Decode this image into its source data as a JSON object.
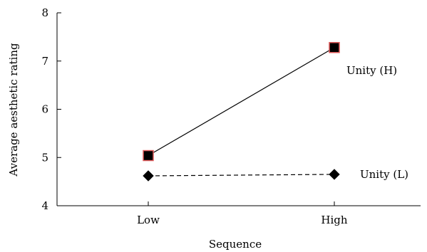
{
  "chart_data": {
    "type": "line",
    "title": "",
    "xlabel": "Sequence",
    "ylabel": "Average aesthetic rating",
    "categories": [
      "Low",
      "High"
    ],
    "ylim": [
      4,
      8
    ],
    "yticks": [
      4,
      5,
      6,
      7,
      8
    ],
    "grid": false,
    "legend": "none",
    "series": [
      {
        "name": "Unity (H)",
        "values": [
          5.04,
          7.28
        ],
        "line_style": "solid",
        "marker": "square",
        "marker_fill": "#000000",
        "marker_edge": "#e05a5a"
      },
      {
        "name": "Unity (L)",
        "values": [
          4.62,
          4.65
        ],
        "line_style": "dashed",
        "marker": "diamond",
        "marker_fill": "#000000",
        "marker_edge": "#000000"
      }
    ]
  }
}
